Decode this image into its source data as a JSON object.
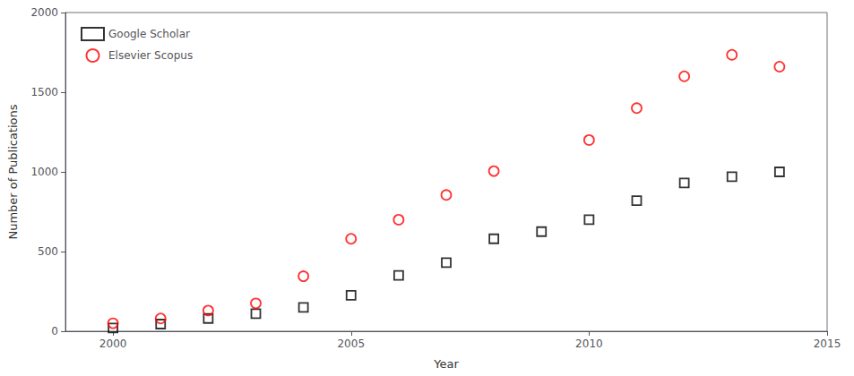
{
  "chart_data": {
    "type": "scatter",
    "xlabel": "Year",
    "ylabel": "Number of Publications",
    "series": [
      {
        "name": "Google Scholar",
        "color": "#000000",
        "marker": "square",
        "x": [
          2000,
          2001,
          2002,
          2003,
          2004,
          2005,
          2006,
          2007,
          2008,
          2009,
          2010,
          2011,
          2012,
          2013,
          2014
        ],
        "values": [
          20,
          45,
          80,
          110,
          150,
          225,
          350,
          430,
          580,
          625,
          700,
          820,
          930,
          970,
          1000
        ]
      },
      {
        "name": "Elsevier Scopus",
        "color": "#ff0000",
        "marker": "circle",
        "x": [
          2000,
          2001,
          2002,
          2003,
          2004,
          2005,
          2006,
          2007,
          2008,
          2010,
          2011,
          2012,
          2013,
          2014
        ],
        "values": [
          50,
          80,
          130,
          175,
          345,
          580,
          700,
          855,
          1005,
          1200,
          1400,
          1600,
          1735,
          1660
        ]
      }
    ],
    "xlim": [
      1999,
      2015
    ],
    "ylim": [
      0,
      2000
    ],
    "xticks": [
      2000,
      2005,
      2010,
      2015
    ],
    "yticks": [
      0,
      500,
      1000,
      1500,
      2000
    ],
    "grid": false,
    "legend": "upper left"
  }
}
